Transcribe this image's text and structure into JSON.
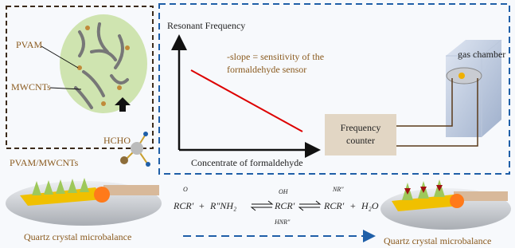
{
  "left_panel": {
    "pvam": "PVAM",
    "mwcnts": "MWCNTs",
    "hcho": "HCHO",
    "composite": "PVAM/MWCNTs"
  },
  "graph": {
    "y_axis_label": "Resonant Frequency",
    "x_axis_label": "Concentrate of formaldehyde",
    "annotation": [
      "-slope = sensitivity of the",
      "formaldehyde sensor"
    ]
  },
  "frequency_counter": [
    "Frequency",
    "counter"
  ],
  "gas_chamber": "gas chamber",
  "reaction": {
    "ketone_top": "O",
    "ketone": "RCR′",
    "plus": "+",
    "amine": "R″NH₂",
    "intermediate_top": "OH",
    "intermediate": "RCR′",
    "intermediate_bottom": "HNR″",
    "imine_top": "NR″",
    "imine": "RCR′",
    "plus2": "+",
    "water": "H₂O"
  },
  "labels": {
    "qcm_left": "Quartz crystal microbalance",
    "qcm_right": "Quartz crystal microbalance"
  }
}
